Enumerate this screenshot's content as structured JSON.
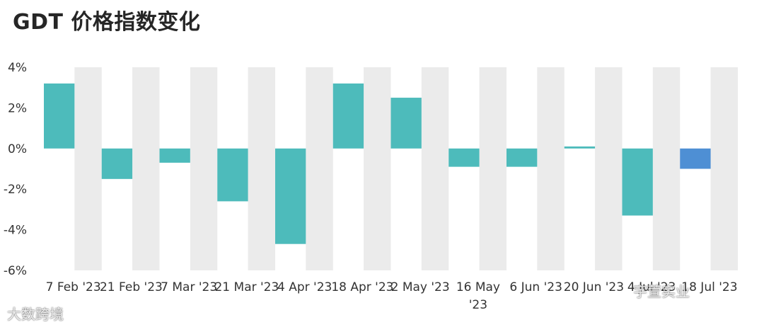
{
  "chart_data": {
    "type": "bar",
    "title": "GDT 价格指数变化",
    "xlabel": "",
    "ylabel": "",
    "ylim": [
      -6,
      4
    ],
    "yticks": [
      4,
      2,
      0,
      -2,
      -4,
      -6
    ],
    "ytick_labels": [
      "4%",
      "2%",
      "0%",
      "-2%",
      "-4%",
      "-6%"
    ],
    "categories": [
      "7 Feb '23",
      "21 Feb '23",
      "7 Mar '23",
      "21 Mar '23",
      "4 Apr '23",
      "18 Apr '23",
      "2 May '23",
      "16 May '23",
      "6 Jun '23",
      "20 Jun '23",
      "4 Jul '23",
      "18 Jul '23"
    ],
    "x_tick_labels": [
      "7 Feb '23",
      "21 Feb '23",
      "7 Mar '23",
      "21 Mar '23",
      "4 Apr '23",
      "18 Apr '23",
      "2 May '23",
      "16 May",
      "6 Jun '23",
      "20 Jun '23",
      "4 Jul '23",
      "18 Jul '23"
    ],
    "x_tick_labels_line2": [
      "",
      "",
      "",
      "",
      "",
      "",
      "",
      "'23",
      "",
      "",
      "",
      ""
    ],
    "values": [
      3.2,
      -1.5,
      -0.7,
      -2.6,
      -4.7,
      3.2,
      2.5,
      -0.9,
      -0.9,
      0.1,
      -3.3,
      -1.0
    ],
    "highlight_index": 11,
    "grid": false,
    "legend": "none",
    "colors": {
      "bar": "#4dbbbb",
      "highlight": "#4e8fd4",
      "band": "#ebebeb",
      "text": "#262626",
      "tick_text": "#333333"
    }
  },
  "watermarks": {
    "left": "大数跨境",
    "right": "宇萱实业"
  }
}
